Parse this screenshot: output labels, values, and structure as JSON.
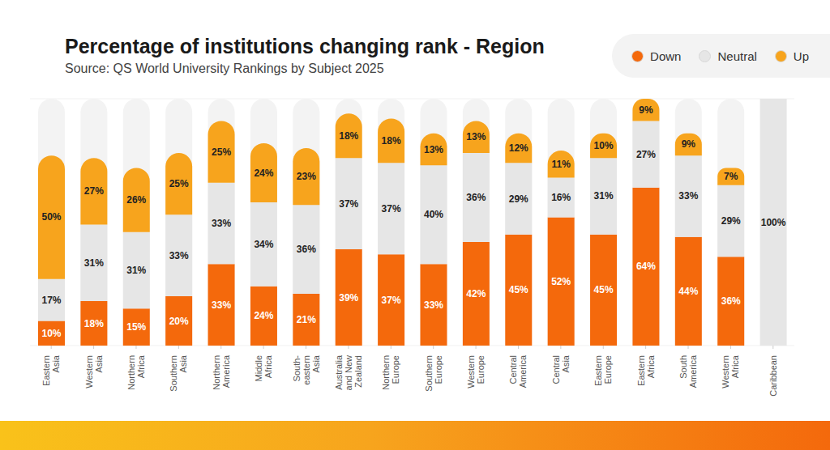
{
  "chart_data": {
    "type": "bar",
    "title": "Percentage of institutions changing rank - Region",
    "subtitle": "Source: QS World University Rankings by Subject 2025",
    "categories": [
      "Eastern Asia",
      "Western Asia",
      "Northern Africa",
      "Southern Asia",
      "Northern America",
      "Middle Africa",
      "South-eastern Asia",
      "Australia and New Zealand",
      "Northern Europe",
      "Southern Europe",
      "Western Europe",
      "Central America",
      "Central Asia",
      "Eastern Europe",
      "Eastern Africa",
      "South America",
      "Western Africa",
      "Caribbean"
    ],
    "series": [
      {
        "name": "Down",
        "color": "#f4690c",
        "values": [
          10,
          18,
          15,
          20,
          33,
          24,
          21,
          39,
          37,
          33,
          42,
          45,
          52,
          45,
          64,
          44,
          36,
          0
        ],
        "value_labels": [
          "10%",
          "18%",
          "15%",
          "20%",
          "33%",
          "24%",
          "21%",
          "39%",
          "37%",
          "33%",
          "42%",
          "45%",
          "52%",
          "45%",
          "64%",
          "44%",
          "36%",
          null
        ]
      },
      {
        "name": "Neutral",
        "color": "#e6e6e6",
        "values": [
          17,
          31,
          31,
          33,
          33,
          34,
          36,
          37,
          37,
          40,
          36,
          29,
          16,
          31,
          27,
          33,
          29,
          100
        ],
        "value_labels": [
          "17%",
          "31%",
          "31%",
          "33%",
          "33%",
          "34%",
          "36%",
          "37%",
          "37%",
          "40%",
          "36%",
          "29%",
          "16%",
          "31%",
          "27%",
          "33%",
          "29%",
          "100%"
        ]
      },
      {
        "name": "Up",
        "color": "#f7a41d",
        "values": [
          50,
          27,
          26,
          25,
          25,
          24,
          23,
          18,
          18,
          13,
          13,
          12,
          11,
          10,
          9,
          9,
          7,
          0
        ],
        "value_labels": [
          "50%",
          "27%",
          "26%",
          "25%",
          "25%",
          "24%",
          "23%",
          "18%",
          "18%",
          "13%",
          "13%",
          "12%",
          "11%",
          "10%",
          "9%",
          "9%",
          "7%",
          null
        ]
      }
    ],
    "stacked": true,
    "data_labels": true,
    "ylim": [
      0,
      100
    ],
    "yticks": [
      0,
      20,
      40,
      60,
      80,
      100
    ],
    "grid": true,
    "tick_labels": "x",
    "legend": "top right"
  }
}
